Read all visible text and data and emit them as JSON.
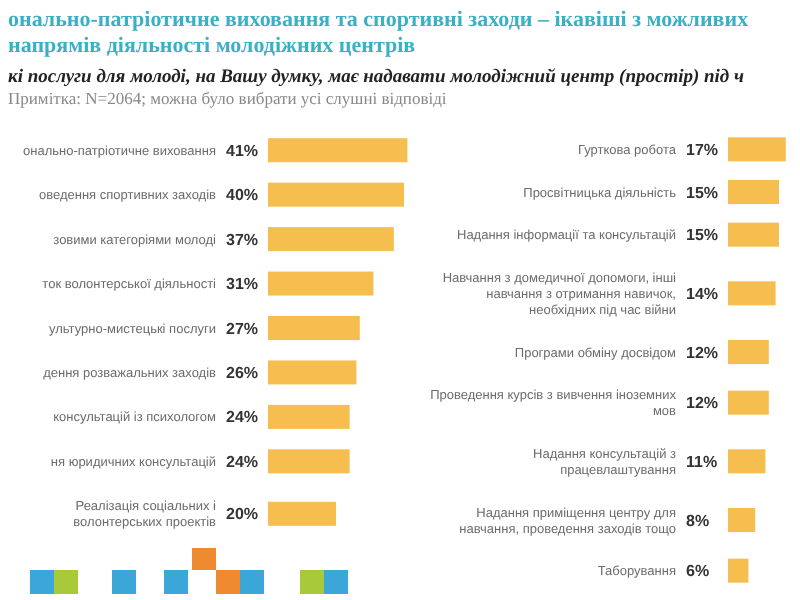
{
  "chart_data": [
    {
      "type": "bar",
      "orientation": "horizontal",
      "title": "онально-патріотичне виховання та спортивні заходи – ікавіші з можливих напрямів діяльності молодіжних центрів",
      "subtitle": "кі послуги для молоді, на Вашу думку, має надавати молодіжний центр (простір) під ч",
      "annotations": [
        "Примітка: N=2064; можна було вибрати усі слушні відповіді"
      ],
      "color": "#f6bd4f",
      "categories": [
        "онально-патріотичне виховання",
        "оведення спортивних заходів",
        "зовими категоріями молоді",
        "ток волонтерської діяльності",
        "ультурно-мистецькі послуги",
        "дення розважальних заходів",
        "консультацій із психологом",
        "ня юридичних консультацій",
        "Реалізація соціальних і волонтерських проектів"
      ],
      "values": [
        41,
        40,
        37,
        31,
        27,
        26,
        24,
        24,
        20
      ],
      "value_labels": [
        "41%",
        "40%",
        "37%",
        "31%",
        "27%",
        "26%",
        "24%",
        "24%",
        "20%"
      ]
    },
    {
      "type": "bar",
      "orientation": "horizontal",
      "color": "#f6bd4f",
      "categories": [
        "Гурткова робота",
        "Просвітницька діяльність",
        "Надання інформації та консультацій",
        "Навчання з домедичної допомоги, інші навчання з отримання навичок, необхідних під час війни",
        "Програми обміну досвідом",
        "Проведення курсів з вивчення іноземних мов",
        "Надання консультацій з працевлаштування",
        "Надання приміщення центру для навчання, проведення заходів тощо",
        "Таборування"
      ],
      "values": [
        17,
        15,
        15,
        14,
        12,
        12,
        11,
        8,
        6
      ],
      "value_labels": [
        "17%",
        "15%",
        "15%",
        "14%",
        "12%",
        "12%",
        "11%",
        "8%",
        "6%"
      ]
    }
  ]
}
